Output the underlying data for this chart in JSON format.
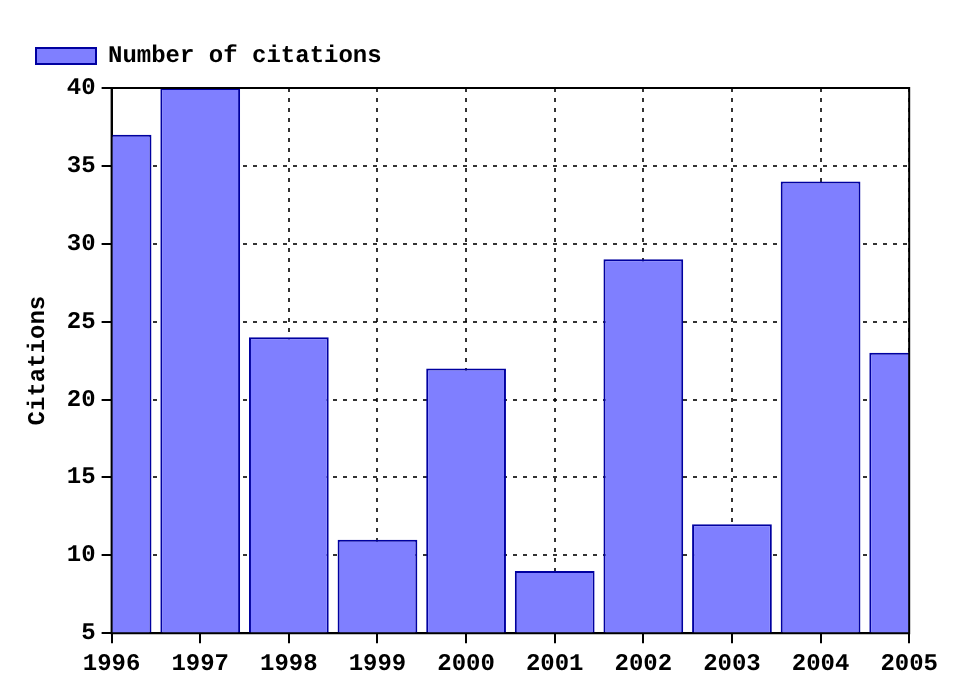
{
  "chart_data": {
    "type": "bar",
    "ylabel": "Citations",
    "x": [
      1996,
      1997,
      1998,
      1999,
      2000,
      2001,
      2002,
      2003,
      2004,
      2005
    ],
    "series": [
      {
        "name": "Number of citations",
        "color": "#7f7fff",
        "values": [
          37,
          40,
          24,
          11,
          22,
          9,
          29,
          12,
          34,
          23
        ]
      }
    ],
    "xlim": [
      1996,
      2005
    ],
    "xticks": [
      1996,
      1997,
      1998,
      1999,
      2000,
      2001,
      2002,
      2003,
      2004,
      2005
    ],
    "ylim": [
      5,
      40
    ],
    "yticks": [
      5,
      10,
      15,
      20,
      25,
      30,
      35,
      40
    ],
    "grid": true,
    "legend": "top left"
  }
}
